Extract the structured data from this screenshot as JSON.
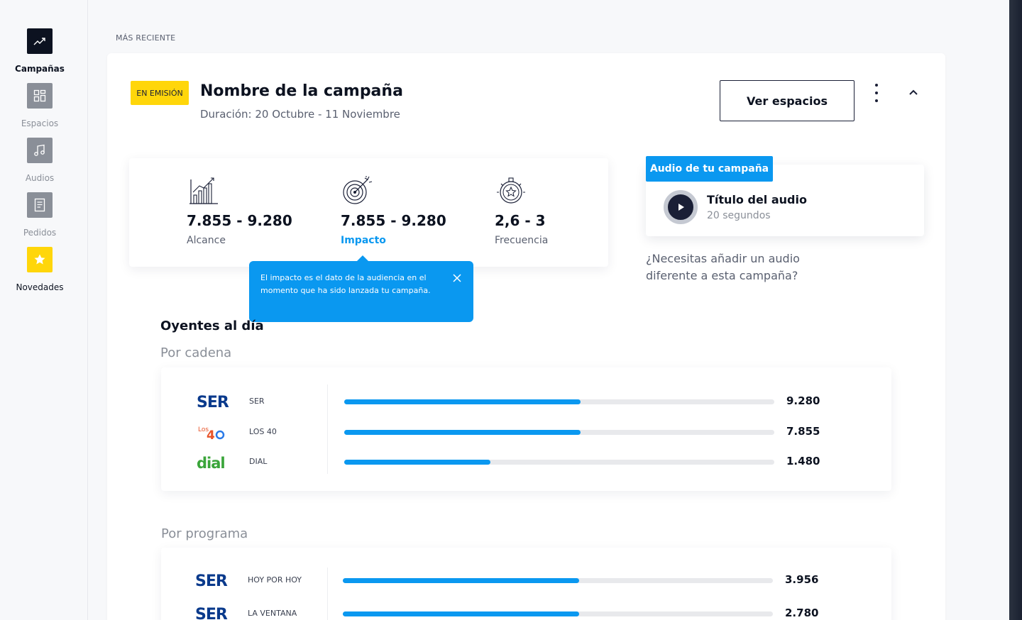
{
  "sidebar": {
    "items": [
      {
        "label": "Campañas",
        "icon": "trending-up-icon",
        "active": true
      },
      {
        "label": "Espacios",
        "icon": "grid-icon"
      },
      {
        "label": "Audios",
        "icon": "music-note-icon"
      },
      {
        "label": "Pedidos",
        "icon": "document-icon"
      },
      {
        "label": "Novedades",
        "icon": "star-icon"
      }
    ]
  },
  "section_label": "MÁS RECIENTE",
  "campaign": {
    "badge": "EN EMISIÓN",
    "title": "Nombre de la campaña",
    "duration": "Duración: 20 Octubre - 11 Noviembre",
    "ver_espacios": "Ver espacios"
  },
  "stats": [
    {
      "value": "7.855 - 9.280",
      "label": "Alcance",
      "icon": "bar-chart-icon"
    },
    {
      "value": "7.855 - 9.280",
      "label": "Impacto",
      "icon": "target-icon"
    },
    {
      "value": "2,6 - 3",
      "label": "Frecuencia",
      "icon": "stopwatch-icon"
    }
  ],
  "tooltip": {
    "text": "El impacto es el dato de la audiencia en el momento que ha sido lanzada tu campaña."
  },
  "audio": {
    "tag": "Audio de tu campaña",
    "title": "Título del audio",
    "duration": "20 segundos",
    "question": "¿Necesitas añadir un audio diferente a esta campaña?"
  },
  "oyentes": {
    "title": "Oyentes al día",
    "por_cadena": "Por cadena",
    "por_programa": "Por programa",
    "cadenas": [
      {
        "logo": "SER",
        "name": "SER",
        "value": "9.280",
        "ratio": 0.55
      },
      {
        "logo": "LOS 40",
        "name": "LOS 40",
        "value": "7.855",
        "ratio": 0.55
      },
      {
        "logo": "dial",
        "name": "DIAL",
        "value": "1.480",
        "ratio": 0.34
      }
    ],
    "programas": [
      {
        "logo": "SER",
        "name": "HOY POR HOY",
        "value": "3.956",
        "ratio": 0.55
      },
      {
        "logo": "SER",
        "name": "LA VENTANA",
        "value": "2.780",
        "ratio": 0.55
      }
    ]
  },
  "colors": {
    "accent": "#0a98f0",
    "badge": "#ffd60a",
    "dark": "#0c1220"
  }
}
